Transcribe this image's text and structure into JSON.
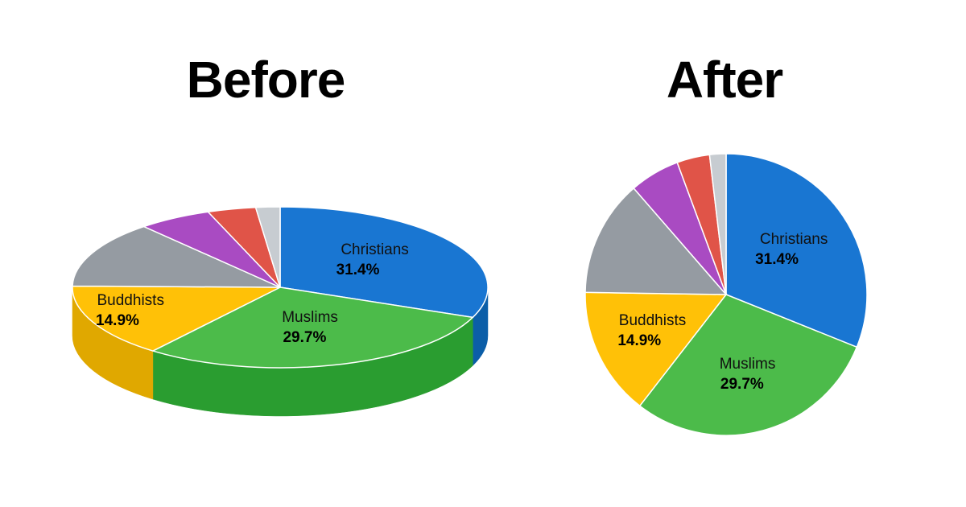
{
  "chart_data": [
    {
      "type": "pie",
      "title": "Before",
      "style": "3d",
      "slices": [
        {
          "name": "Christians",
          "value": 31.4,
          "label": "31.4%",
          "color": "#1976D2",
          "side": "#0B5EA8",
          "show_label": true
        },
        {
          "name": "Muslims",
          "value": 29.7,
          "label": "29.7%",
          "color": "#4CBB4A",
          "side": "#2A9D30",
          "show_label": true
        },
        {
          "name": "Buddhists",
          "value": 14.9,
          "label": "14.9%",
          "color": "#FFC107",
          "side": "#E0A800",
          "show_label": true
        },
        {
          "name": "",
          "value": 13.5,
          "label": "",
          "color": "#959BA2",
          "side": "#7C8288",
          "show_label": false
        },
        {
          "name": "",
          "value": 5.8,
          "label": "",
          "color": "#A94BC2",
          "side": "#8C3AA4",
          "show_label": false
        },
        {
          "name": "",
          "value": 3.8,
          "label": "",
          "color": "#E05448",
          "side": "#C0392B",
          "show_label": false
        },
        {
          "name": "",
          "value": 1.9,
          "label": "",
          "color": "#C7CCD1",
          "side": "#AEB3B8",
          "show_label": false
        }
      ]
    },
    {
      "type": "pie",
      "title": "After",
      "style": "2d",
      "slices": [
        {
          "name": "Christians",
          "value": 31.4,
          "label": "31.4%",
          "color": "#1976D2",
          "show_label": true
        },
        {
          "name": "Muslims",
          "value": 29.7,
          "label": "29.7%",
          "color": "#4CBB4A",
          "show_label": true
        },
        {
          "name": "Buddhists",
          "value": 14.9,
          "label": "14.9%",
          "color": "#FFC107",
          "show_label": true
        },
        {
          "name": "",
          "value": 13.5,
          "label": "",
          "color": "#959BA2",
          "show_label": false
        },
        {
          "name": "",
          "value": 5.8,
          "label": "",
          "color": "#A94BC2",
          "show_label": false
        },
        {
          "name": "",
          "value": 3.8,
          "label": "",
          "color": "#E05448",
          "show_label": false
        },
        {
          "name": "",
          "value": 1.9,
          "label": "",
          "color": "#C7CCD1",
          "show_label": false
        }
      ]
    }
  ]
}
